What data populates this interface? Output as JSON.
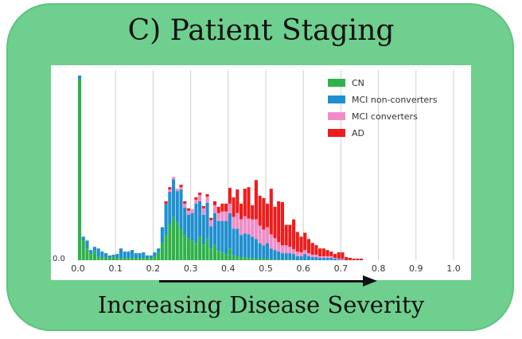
{
  "title": "C) Patient Staging",
  "caption": "Increasing Disease Severity",
  "colors": {
    "panel": "#6fcf8e",
    "CN": "#2fb24a",
    "MCI non-converters": "#1f8fcf",
    "MCI converters": "#f08cc8",
    "AD": "#ee1c1c"
  },
  "chart_data": {
    "type": "bar",
    "stacked": true,
    "xlim": [
      0.0,
      1.0
    ],
    "x_ticks": [
      "0.0",
      "0.1",
      "0.2",
      "0.3",
      "0.4",
      "0.5",
      "0.6",
      "0.7",
      "0.8",
      "0.9",
      "1.0"
    ],
    "y_tick_visible": "0.0",
    "grid": "vertical",
    "legend_position": "top-right",
    "bin_width": 0.01,
    "x": [
      0.0,
      0.01,
      0.02,
      0.03,
      0.04,
      0.05,
      0.06,
      0.07,
      0.08,
      0.09,
      0.1,
      0.11,
      0.12,
      0.13,
      0.14,
      0.15,
      0.16,
      0.17,
      0.18,
      0.19,
      0.2,
      0.21,
      0.22,
      0.23,
      0.24,
      0.25,
      0.26,
      0.27,
      0.28,
      0.29,
      0.3,
      0.31,
      0.32,
      0.33,
      0.34,
      0.35,
      0.36,
      0.37,
      0.38,
      0.39,
      0.4,
      0.41,
      0.42,
      0.43,
      0.44,
      0.45,
      0.46,
      0.47,
      0.48,
      0.49,
      0.5,
      0.51,
      0.52,
      0.53,
      0.54,
      0.55,
      0.56,
      0.57,
      0.58,
      0.59,
      0.6,
      0.61,
      0.62,
      0.63,
      0.64,
      0.65,
      0.66,
      0.67,
      0.68,
      0.69,
      0.7,
      0.71,
      0.72,
      0.73,
      0.74,
      0.75
    ],
    "series": [
      {
        "name": "CN",
        "values": [
          230,
          25,
          15,
          8,
          12,
          5,
          3,
          4,
          3,
          4,
          3,
          3,
          3,
          3,
          3,
          3,
          3,
          3,
          3,
          3,
          5,
          10,
          22,
          32,
          45,
          55,
          48,
          40,
          32,
          28,
          25,
          22,
          30,
          20,
          28,
          15,
          20,
          12,
          10,
          8,
          15,
          6,
          5,
          4,
          4,
          3,
          3,
          2,
          2,
          2,
          2,
          1,
          1,
          1,
          1,
          1,
          1,
          1,
          0,
          0,
          0,
          0,
          0,
          0,
          0,
          0,
          0,
          0,
          0,
          0,
          0,
          0,
          0,
          0,
          0,
          0
        ]
      },
      {
        "name": "MCI non-converters",
        "values": [
          5,
          5,
          10,
          5,
          5,
          10,
          8,
          5,
          3,
          3,
          5,
          12,
          8,
          8,
          10,
          6,
          6,
          7,
          3,
          3,
          5,
          5,
          20,
          40,
          42,
          48,
          40,
          50,
          35,
          30,
          35,
          50,
          45,
          38,
          45,
          28,
          40,
          38,
          40,
          42,
          45,
          34,
          35,
          28,
          30,
          30,
          27,
          25,
          20,
          17,
          20,
          14,
          12,
          10,
          8,
          8,
          8,
          7,
          5,
          5,
          8,
          5,
          4,
          4,
          3,
          3,
          3,
          3,
          2,
          1,
          1,
          0,
          0,
          0,
          0,
          0
        ]
      },
      {
        "name": "MCI converters",
        "values": [
          0,
          0,
          0,
          0,
          0,
          0,
          0,
          0,
          0,
          0,
          0,
          0,
          0,
          0,
          0,
          0,
          0,
          0,
          0,
          0,
          0,
          0,
          0,
          0,
          3,
          3,
          3,
          3,
          5,
          5,
          5,
          5,
          8,
          8,
          8,
          8,
          10,
          10,
          12,
          12,
          12,
          15,
          20,
          20,
          22,
          20,
          22,
          25,
          22,
          20,
          20,
          18,
          15,
          12,
          10,
          10,
          8,
          6,
          6,
          5,
          5,
          4,
          3,
          3,
          2,
          2,
          2,
          2,
          1,
          1,
          1,
          0,
          0,
          0,
          0,
          0
        ]
      },
      {
        "name": "AD",
        "values": [
          0,
          0,
          0,
          0,
          0,
          0,
          0,
          0,
          0,
          0,
          0,
          0,
          0,
          0,
          0,
          0,
          0,
          0,
          0,
          0,
          0,
          0,
          0,
          3,
          3,
          0,
          0,
          3,
          3,
          3,
          0,
          3,
          3,
          3,
          3,
          3,
          5,
          8,
          10,
          10,
          20,
          25,
          30,
          20,
          35,
          40,
          18,
          50,
          38,
          40,
          30,
          58,
          40,
          52,
          55,
          26,
          28,
          38,
          25,
          20,
          22,
          18,
          15,
          12,
          10,
          10,
          8,
          6,
          5,
          8,
          8,
          4,
          3,
          2,
          2,
          2
        ]
      }
    ]
  }
}
